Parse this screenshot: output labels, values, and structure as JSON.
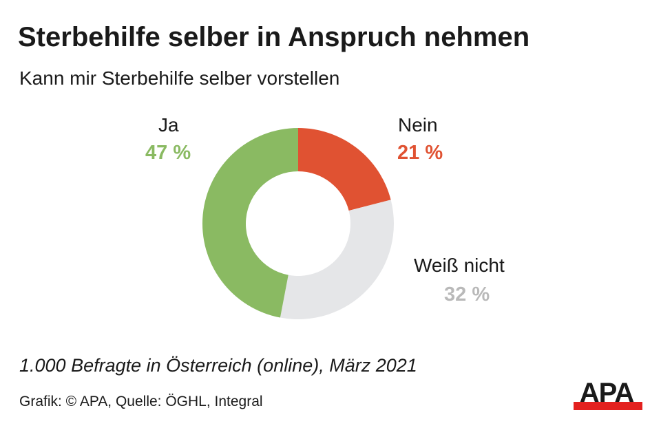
{
  "title": "Sterbehilfe selber in Anspruch nehmen",
  "subtitle": "Kann mir Sterbehilfe selber vorstellen",
  "chart_data": {
    "type": "pie",
    "donut": true,
    "start": "top, clockwise",
    "slices": [
      {
        "label": "Nein",
        "value": 21,
        "display": "21 %",
        "color": "#e05232",
        "label_color": "#e05232"
      },
      {
        "label": "Weiß nicht",
        "value": 32,
        "display": "32 %",
        "color": "#e5e6e8",
        "label_color": "#b9b9b9"
      },
      {
        "label": "Ja",
        "value": 47,
        "display": "47 %",
        "color": "#8aba62",
        "label_color": "#8aba62"
      }
    ]
  },
  "note": "1.000 Befragte in Österreich (online), März 2021",
  "source": "Grafik: © APA, Quelle: ÖGHL, Integral",
  "logo": {
    "text": "APA",
    "colors": {
      "text": "#1a1a1a",
      "bar": "#e3211f"
    }
  }
}
